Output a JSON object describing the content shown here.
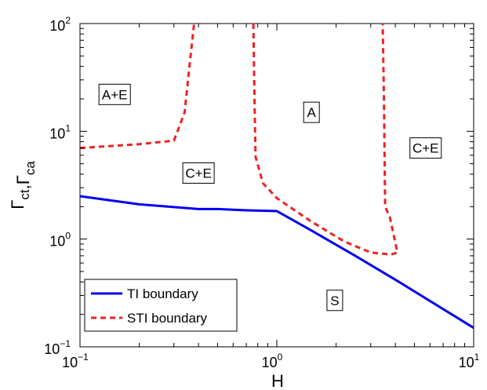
{
  "chart_data": {
    "type": "line",
    "xscale": "log",
    "yscale": "log",
    "xlim": [
      0.1,
      10
    ],
    "ylim": [
      0.1,
      100
    ],
    "xlabel": "H",
    "ylabel": "Γct,Γca",
    "x_ticks": [
      {
        "value": 0.1,
        "base": "10",
        "exp": "−1"
      },
      {
        "value": 1,
        "base": "10",
        "exp": "0"
      },
      {
        "value": 10,
        "base": "10",
        "exp": "1"
      }
    ],
    "y_ticks": [
      {
        "value": 0.1,
        "base": "10",
        "exp": "−1"
      },
      {
        "value": 1,
        "base": "10",
        "exp": "0"
      },
      {
        "value": 10,
        "base": "10",
        "exp": "1"
      },
      {
        "value": 100,
        "base": "10",
        "exp": "2"
      }
    ],
    "legend_position": "bottom-left",
    "grid": false,
    "series": [
      {
        "name": "TI boundary",
        "color": "#0000ee",
        "style": "solid",
        "points": [
          [
            0.1,
            2.5
          ],
          [
            0.2,
            2.1
          ],
          [
            0.4,
            1.9
          ],
          [
            0.5,
            1.9
          ],
          [
            0.7,
            1.85
          ],
          [
            1.0,
            1.82
          ],
          [
            1.5,
            1.2
          ],
          [
            2.5,
            0.7
          ],
          [
            4.0,
            0.42
          ],
          [
            10.0,
            0.15
          ]
        ]
      },
      {
        "name": "STI boundary",
        "color": "#ee2222",
        "style": "dashed",
        "segments": [
          [
            [
              0.1,
              7.0
            ],
            [
              0.2,
              7.6
            ],
            [
              0.3,
              8.2
            ],
            [
              0.34,
              15.0
            ],
            [
              0.36,
              40.0
            ],
            [
              0.38,
              100.0
            ]
          ],
          [
            [
              0.76,
              100.0
            ],
            [
              0.77,
              20.0
            ],
            [
              0.78,
              5.8
            ],
            [
              0.85,
              3.3
            ],
            [
              1.0,
              2.4
            ],
            [
              1.5,
              1.45
            ],
            [
              2.2,
              0.95
            ],
            [
              3.0,
              0.75
            ],
            [
              3.8,
              0.72
            ],
            [
              4.1,
              0.75
            ],
            [
              3.75,
              1.6
            ],
            [
              3.55,
              2.0
            ],
            [
              3.5,
              20.0
            ],
            [
              3.45,
              100.0
            ]
          ]
        ]
      }
    ],
    "annotations": [
      {
        "text": "A+E",
        "x": 0.15,
        "y": 22
      },
      {
        "text": "A",
        "x": 1.5,
        "y": 15
      },
      {
        "text": "C+E",
        "x": 5.7,
        "y": 7
      },
      {
        "text": "C+E",
        "x": 0.4,
        "y": 4.1
      },
      {
        "text": "S",
        "x": 1.97,
        "y": 0.27
      }
    ]
  }
}
